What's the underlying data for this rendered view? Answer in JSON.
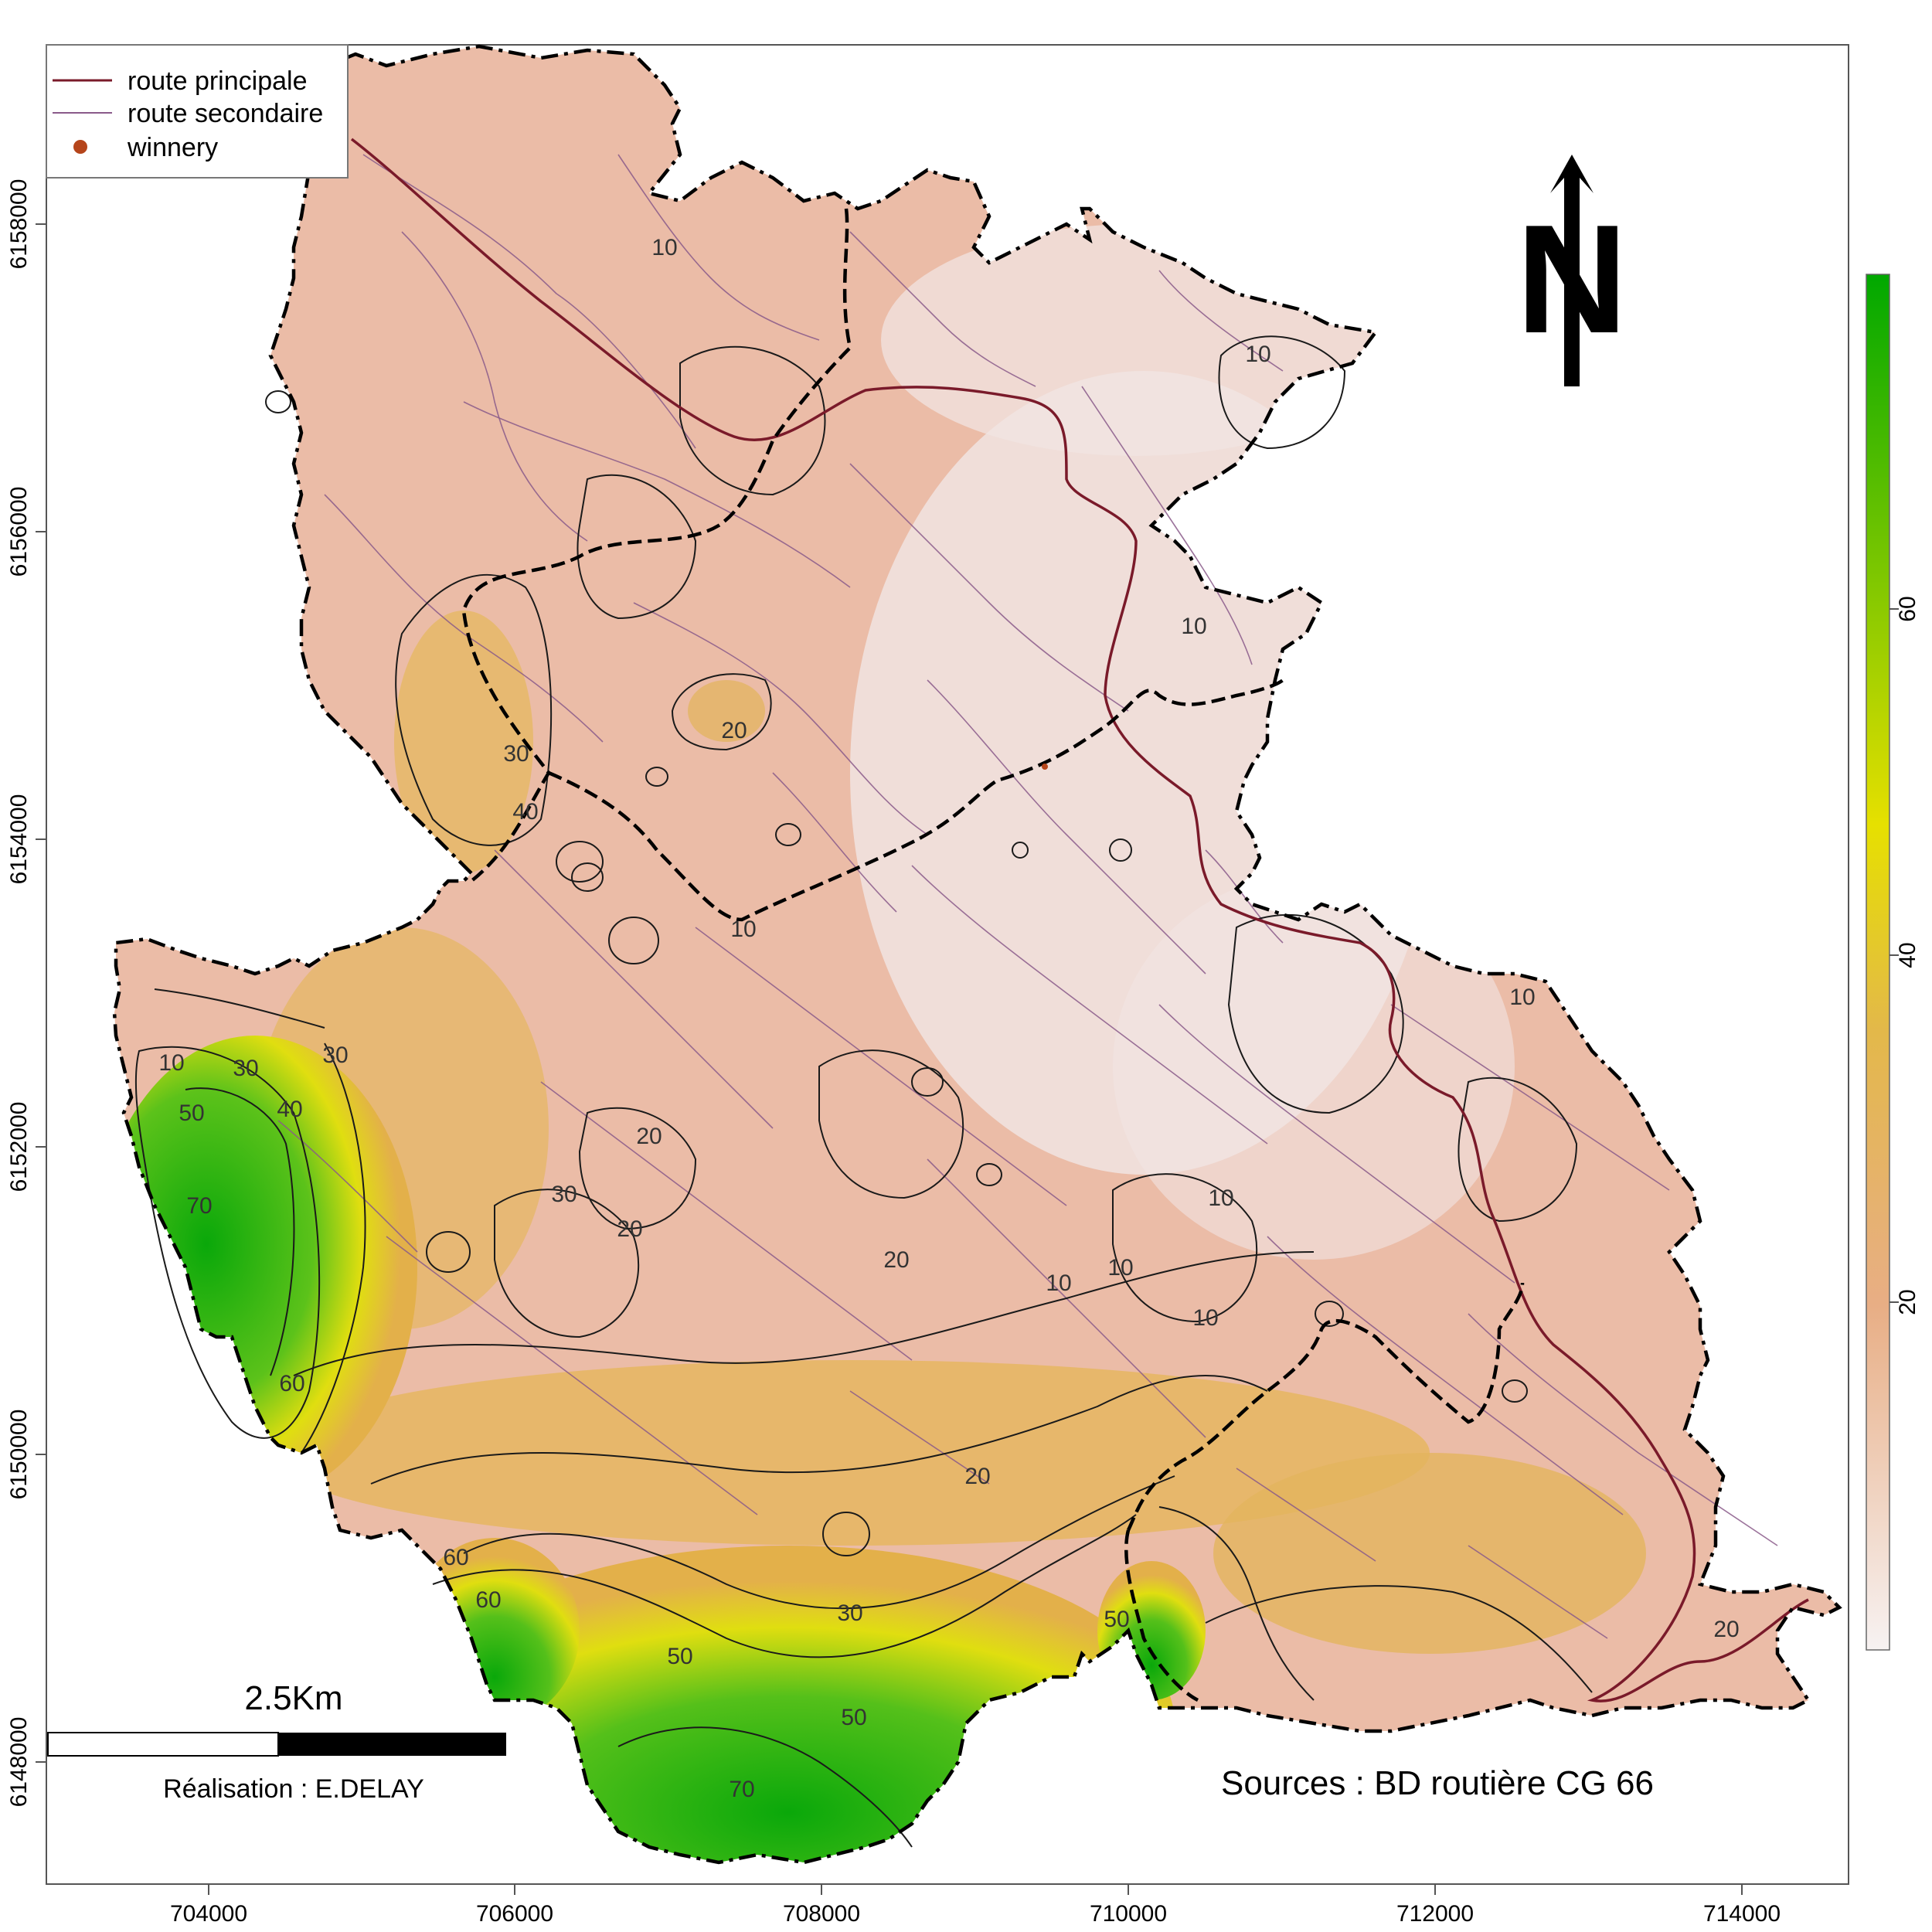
{
  "legend": {
    "items": [
      {
        "label": "route principale",
        "color": "#7a1a2a",
        "kind": "line-thick"
      },
      {
        "label": "route secondaire",
        "color": "#8a5a8a",
        "kind": "line-thin"
      },
      {
        "label": "winnery",
        "color": "#b5451b",
        "kind": "point"
      }
    ]
  },
  "north_arrow": {
    "label": "N"
  },
  "scale_bar": {
    "label": "2.5Km"
  },
  "credit": {
    "text": "Réalisation : E.DELAY"
  },
  "sources": {
    "text": "Sources : BD routière CG 66"
  },
  "colors": {
    "frame": "#555555",
    "low": "#f3ecec",
    "mid": "#e8ae85",
    "yellow": "#e6e000",
    "green": "#00a800"
  },
  "chart_data": {
    "type": "heatmap",
    "x_ticks": [
      "704000",
      "706000",
      "708000",
      "710000",
      "712000",
      "714000"
    ],
    "y_ticks": [
      "6148000",
      "6150000",
      "6152000",
      "6154000",
      "6156000",
      "6158000"
    ],
    "colorbar_ticks": [
      "20",
      "40",
      "60"
    ],
    "contour_labels": [
      "10",
      "10",
      "10",
      "10",
      "10",
      "10",
      "10",
      "10",
      "10",
      "10",
      "20",
      "20",
      "20",
      "20",
      "20",
      "20",
      "30",
      "30",
      "30",
      "30",
      "30",
      "40",
      "40",
      "50",
      "50",
      "50",
      "50",
      "60",
      "60",
      "60",
      "70",
      "70"
    ]
  }
}
